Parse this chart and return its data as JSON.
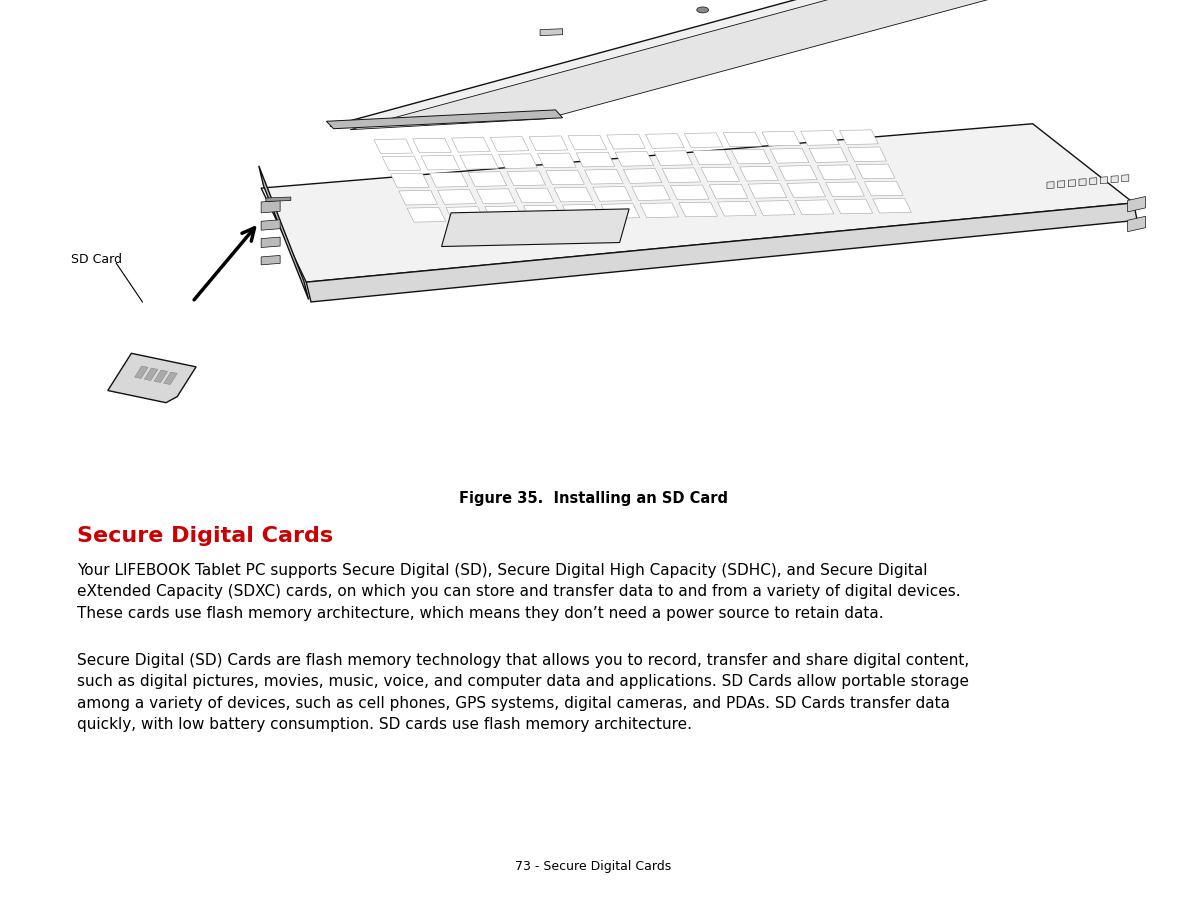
{
  "background_color": "#ffffff",
  "figure_caption": "Figure 35.  Installing an SD Card",
  "figure_caption_fontsize": 10.5,
  "section_heading": "Secure Digital Cards",
  "section_heading_color": "#cc0000",
  "section_heading_fontsize": 16,
  "paragraph1": "Your LIFEBOOK Tablet PC supports Secure Digital (SD), Secure Digital High Capacity (SDHC), and Secure Digital\neXtended Capacity (SDXC) cards, on which you can store and transfer data to and from a variety of digital devices.\nThese cards use flash memory architecture, which means they don’t need a power source to retain data.",
  "paragraph2": "Secure Digital (SD) Cards are flash memory technology that allows you to record, transfer and share digital content,\nsuch as digital pictures, movies, music, voice, and computer data and applications. SD Cards allow portable storage\namong a variety of devices, such as cell phones, GPS systems, digital cameras, and PDAs. SD Cards transfer data\nquickly, with low battery consumption. SD cards use flash memory architecture.",
  "body_fontsize": 11,
  "body_color": "#000000",
  "footer_text": "73 - Secure Digital Cards",
  "footer_fontsize": 9,
  "sd_card_label": "SD Card",
  "label_fontsize": 9
}
